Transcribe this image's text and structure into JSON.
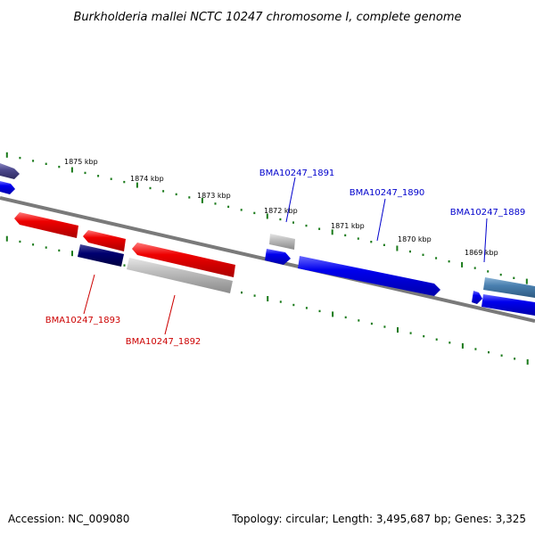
{
  "title": "Burkholderia mallei NCTC 10247 chromosome I, complete genome",
  "footer": {
    "accession": "Accession: NC_009080",
    "topology": "Topology: circular; Length: 3,495,687 bp; Genes: 3,325"
  },
  "colors": {
    "backbone": "#777777",
    "ticks": "#1a7a1a",
    "forward_gene": "#0000ee",
    "reverse_gene": "#ee0000",
    "forward_label": "#0000cc",
    "reverse_label": "#cc0000"
  },
  "scale_labels": [
    "1875 kbp",
    "1874 kbp",
    "1873 kbp",
    "1872 kbp",
    "1871 kbp",
    "1870 kbp",
    "1869 kbp"
  ],
  "gene_labels": {
    "g1891": "BMA10247_1891",
    "g1890": "BMA10247_1890",
    "g1889": "BMA10247_1889",
    "g1893": "BMA10247_1893",
    "g1892": "BMA10247_1892"
  }
}
